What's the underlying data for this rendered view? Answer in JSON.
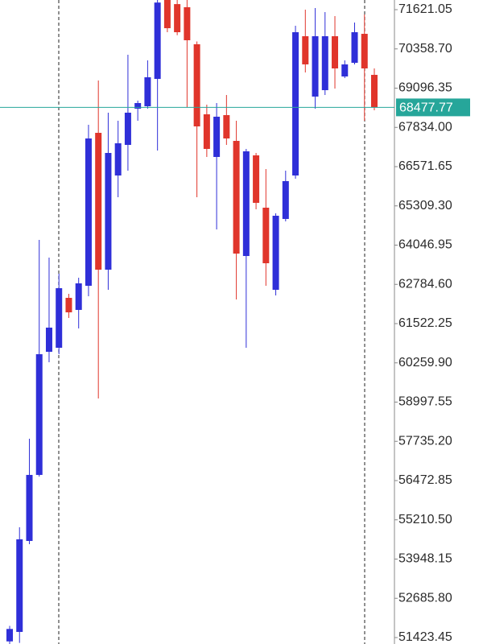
{
  "chart_data": {
    "type": "candlestick",
    "up_color": "#2f2fd8",
    "down_color": "#e0352b",
    "ylim": [
      51216,
      71932
    ],
    "yticks": [
      71621.05,
      {
        "value": 70358.7,
        "label": "70358.70"
      },
      69096.35,
      {
        "value": 67834,
        "label": "67834.00"
      },
      66571.65,
      {
        "value": 65309.3,
        "label": "65309.30"
      },
      64046.95,
      {
        "value": 62784.6,
        "label": "62784.60"
      },
      61522.25,
      {
        "value": 60259.9,
        "label": "60259.90"
      },
      58997.55,
      {
        "value": 57735.2,
        "label": "57735.20"
      },
      56472.85,
      {
        "value": 55210.5,
        "label": "55210.50"
      },
      53948.15,
      {
        "value": 52685.8,
        "label": "52685.80"
      },
      51423.45
    ],
    "current_price": 68477.77,
    "current_price_color": "#26a69a",
    "open": [
      51300,
      51605,
      54531,
      56655,
      60616,
      60745,
      62351,
      61963,
      62739,
      67659,
      63257,
      66287,
      67271,
      68436,
      68514,
      69394,
      71950,
      71800,
      71700,
      70508,
      68255,
      66883,
      68229,
      67400,
      63697,
      66934,
      65251,
      62610,
      64889,
      66287,
      70767,
      68825,
      69032,
      70767,
      69472,
      69912,
      70844,
      69524
    ],
    "high": [
      51800,
      54971,
      57820,
      64215,
      63645,
      63128,
      62480,
      62998,
      67918,
      69342,
      68307,
      68048,
      70171,
      68695,
      69990,
      72100,
      72100,
      72100,
      72050,
      70600,
      68566,
      68617,
      68876,
      68048,
      67142,
      67012,
      66494,
      65070,
      66442,
      71103,
      71621,
      71673,
      71543,
      71414,
      69990,
      71207,
      71466,
      69731
    ],
    "low": [
      51200,
      51250,
      54428,
      56603,
      60279,
      60538,
      61704,
      61367,
      62403,
      59114,
      62610,
      65588,
      66442,
      68048,
      68436,
      67090,
      70896,
      70800,
      68488,
      65588,
      66883,
      64552,
      67271,
      62299,
      60746,
      65200,
      62739,
      62429,
      64811,
      66184,
      69601,
      68436,
      68876,
      69083,
      69420,
      69860,
      68048,
      68385
    ],
    "close": [
      51700,
      54583,
      56655,
      60538,
      61393,
      62662,
      61885,
      62817,
      67478,
      63257,
      67012,
      67323,
      68307,
      68617,
      69446,
      71850,
      71025,
      70896,
      70637,
      67866,
      67142,
      68178,
      67478,
      63775,
      67064,
      65407,
      63464,
      64992,
      66106,
      70896,
      69861,
      70767,
      70767,
      69731,
      69860,
      70896,
      69731,
      68477.77
    ]
  }
}
